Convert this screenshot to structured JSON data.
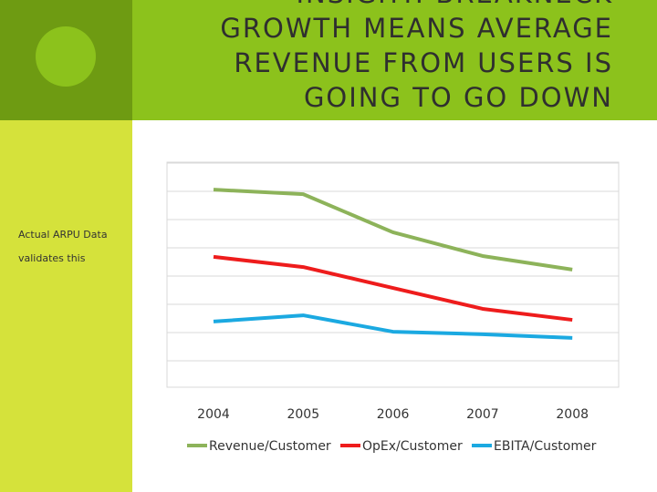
{
  "title_lines": [
    "INSIGHT: BREAKNECK",
    "GROWTH MEANS AVERAGE",
    "REVENUE FROM USERS IS",
    "GOING TO GO DOWN"
  ],
  "sidebar_lines": [
    "Actual ARPU Data",
    "validates this"
  ],
  "chart_data": {
    "type": "line",
    "categories": [
      "2004",
      "2005",
      "2006",
      "2007",
      "2008"
    ],
    "series": [
      {
        "name": "Revenue/Customer",
        "color": "#8db35a",
        "values": [
          7.06,
          6.9,
          5.55,
          4.71,
          4.23
        ]
      },
      {
        "name": "OpEx/Customer",
        "color": "#ee1c1c",
        "values": [
          4.68,
          4.32,
          3.58,
          2.84,
          2.45
        ]
      },
      {
        "name": "EBITA/Customer",
        "color": "#1ba9e1",
        "values": [
          2.39,
          2.61,
          2.03,
          1.94,
          1.81
        ]
      }
    ],
    "ylim": [
      0,
      8
    ],
    "yticks": [
      1,
      2,
      3,
      4,
      5,
      6,
      7,
      8
    ],
    "grid": true,
    "legend": "bottom"
  }
}
